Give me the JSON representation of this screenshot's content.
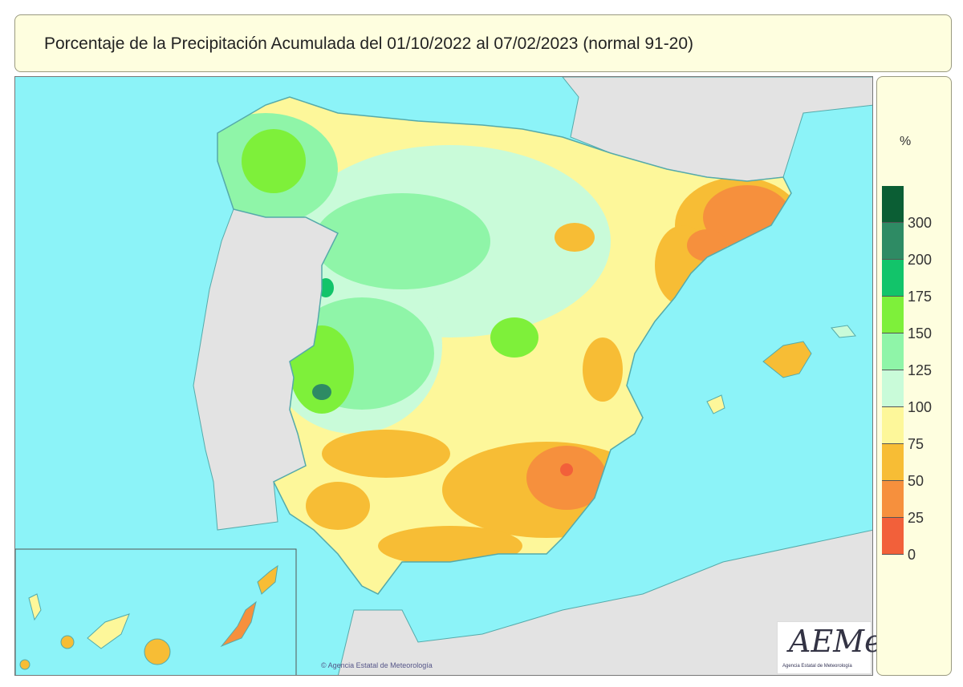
{
  "title": "Porcentaje de la Precipitación Acumulada del 01/10/2022 al 07/02/2023 (normal 91-20)",
  "legend": {
    "unit": "%",
    "bins": [
      {
        "label": "300",
        "color": "#0b5e34"
      },
      {
        "label": "200",
        "color": "#2e8b64"
      },
      {
        "label": "175",
        "color": "#12c46a"
      },
      {
        "label": "150",
        "color": "#7ef03a"
      },
      {
        "label": "125",
        "color": "#8ff5a8"
      },
      {
        "label": "100",
        "color": "#c9fbd9"
      },
      {
        "label": "75",
        "color": "#fdf79a"
      },
      {
        "label": "50",
        "color": "#f7bd35"
      },
      {
        "label": "25",
        "color": "#f6903d"
      },
      {
        "label": "0",
        "color": "#f2603a"
      }
    ]
  },
  "colors": {
    "sea": "#8cf3f8",
    "land_other": "#e3e3e3"
  },
  "copyright": "© Agencia Estatal de Meteorología",
  "logo": {
    "text": "AEMet",
    "subtitle": "Agencia Estatal de Meteorología"
  }
}
